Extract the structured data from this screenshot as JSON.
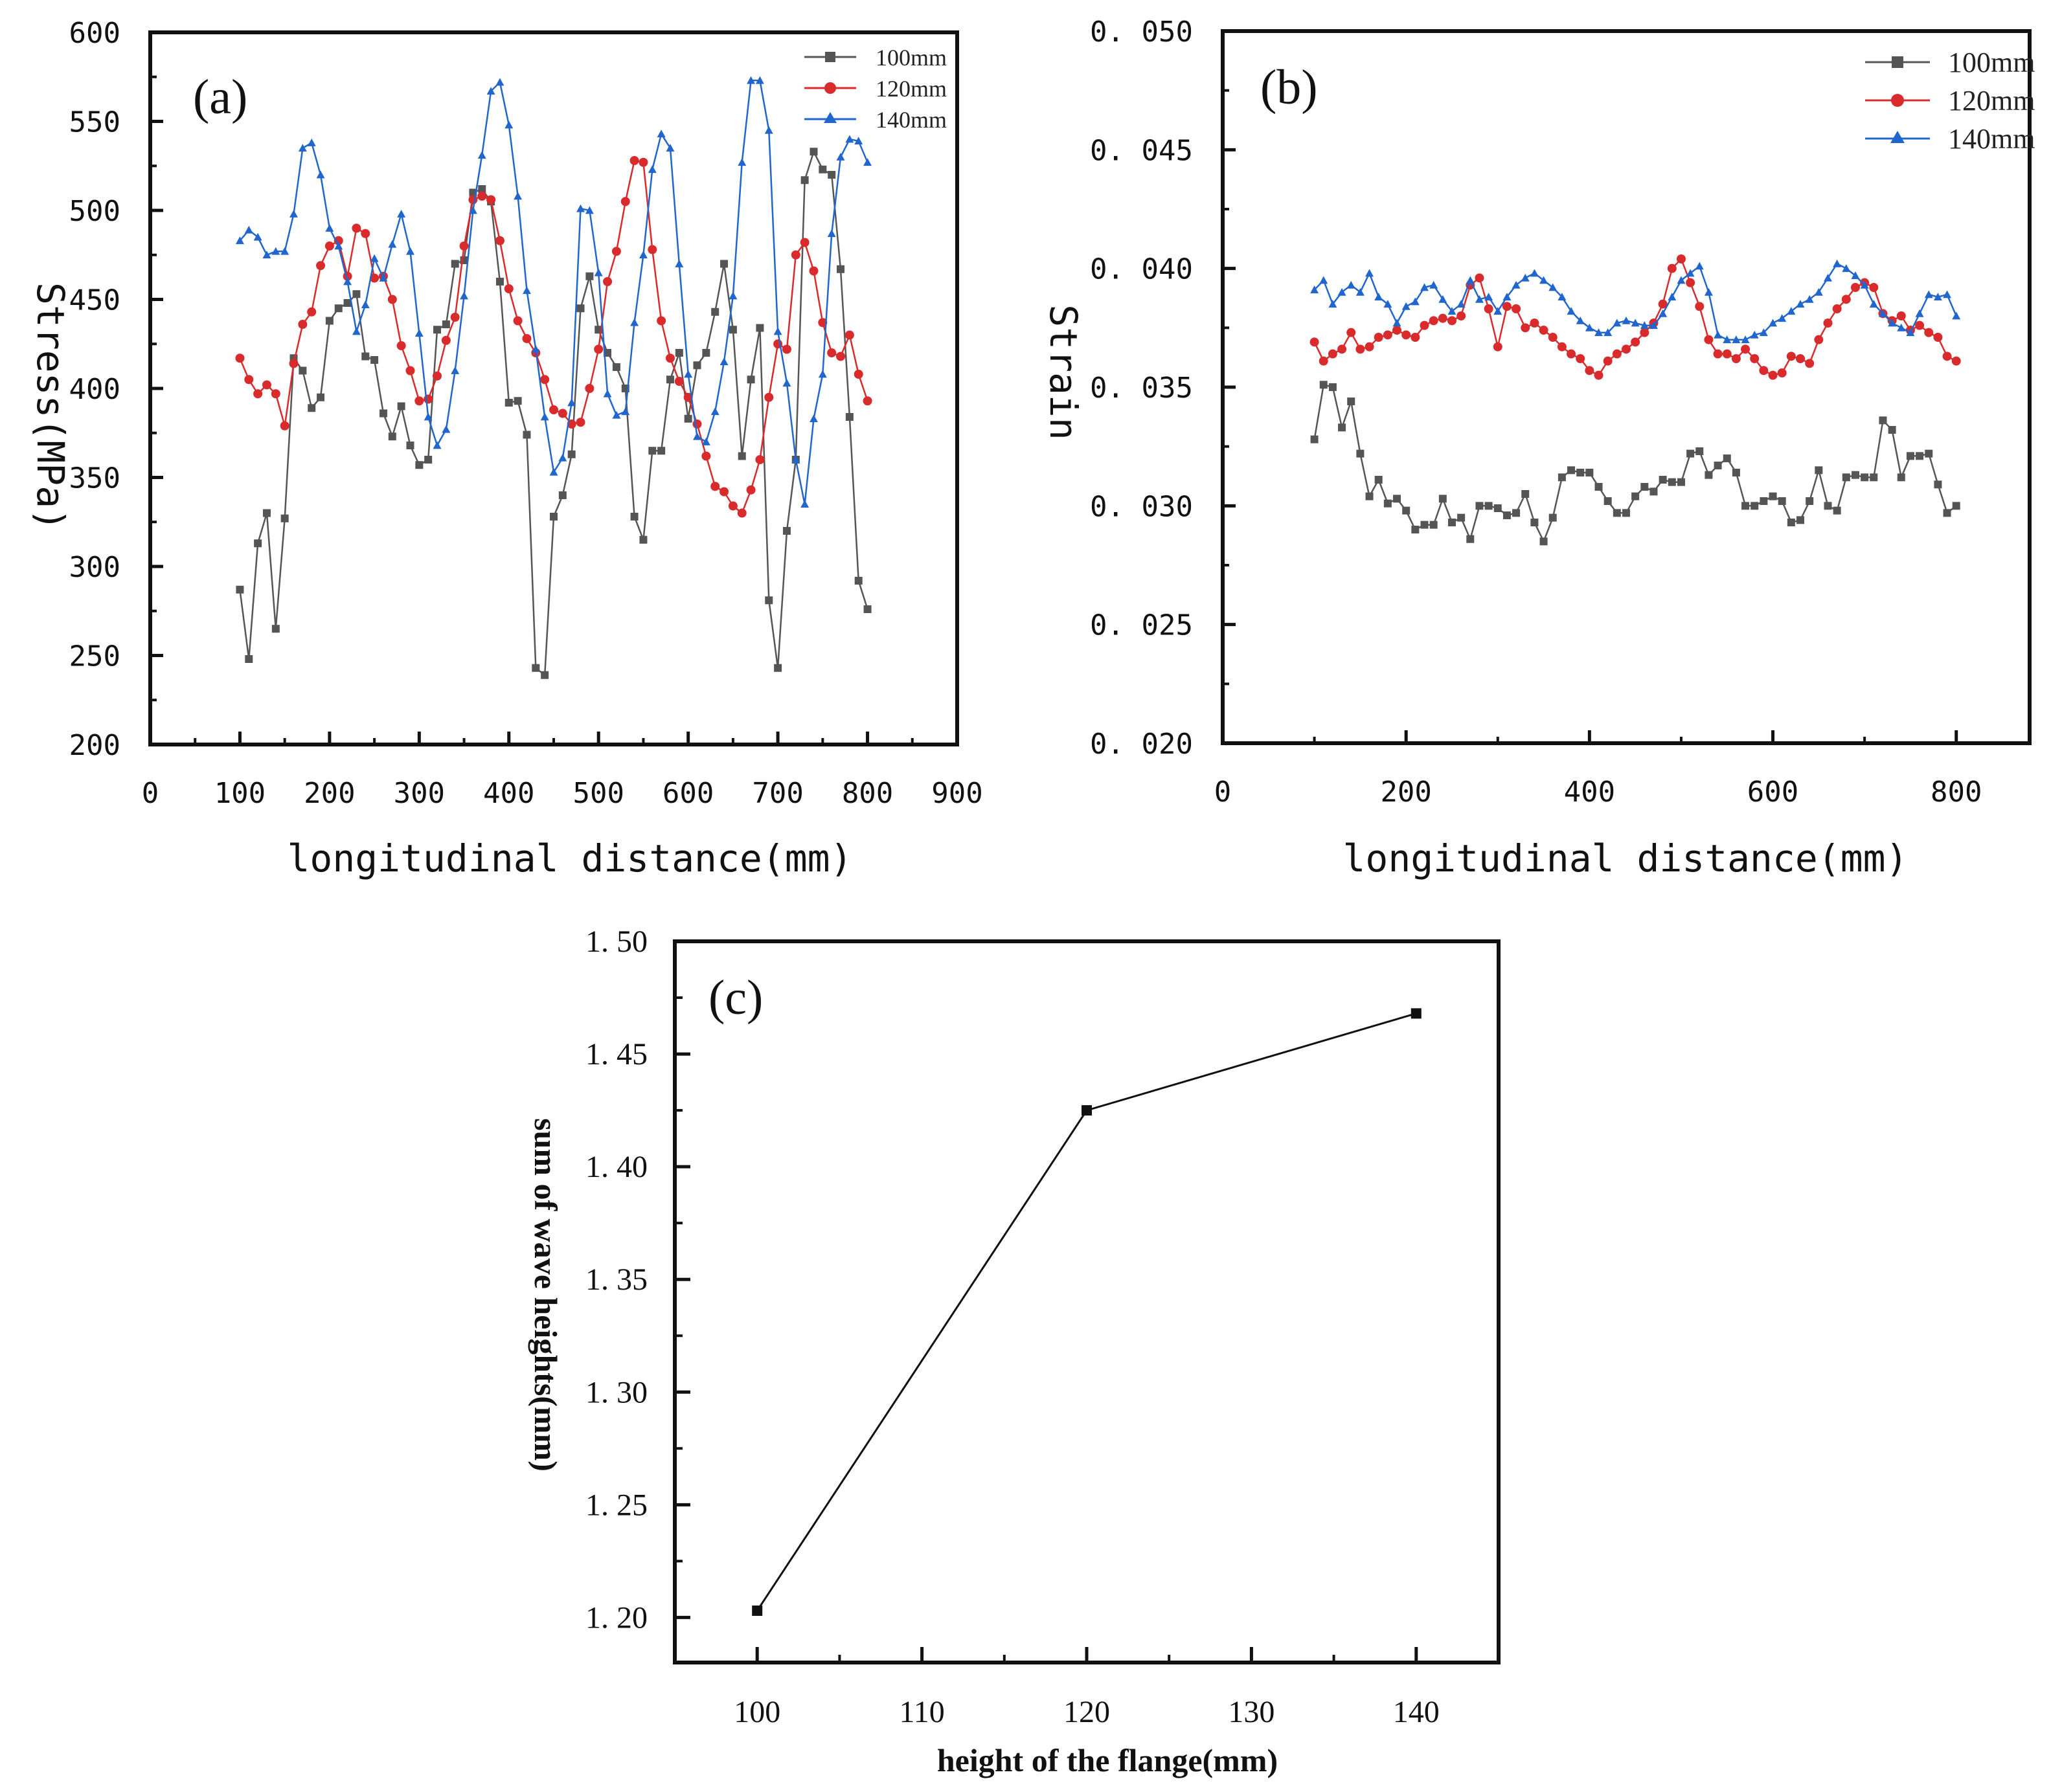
{
  "chart_data": [
    {
      "type": "line",
      "panel": "(a)",
      "xlabel": "longitudinal distance(mm)",
      "ylabel": "Stress(MPa)",
      "xlim": [
        0,
        900
      ],
      "ylim": [
        200,
        600
      ],
      "xticks": [
        0,
        100,
        200,
        300,
        400,
        500,
        600,
        700,
        800,
        900
      ],
      "yticks": [
        200,
        250,
        300,
        350,
        400,
        450,
        500,
        550,
        600
      ],
      "legend": "top-right",
      "series": [
        {
          "name": "100mm",
          "color": "#555555",
          "marker": "square",
          "x": [
            100,
            110,
            120,
            130,
            140,
            150,
            160,
            170,
            180,
            190,
            200,
            210,
            220,
            230,
            240,
            250,
            260,
            270,
            280,
            290,
            300,
            310,
            320,
            330,
            340,
            350,
            360,
            370,
            380,
            390,
            400,
            410,
            420,
            430,
            440,
            450,
            460,
            470,
            480,
            490,
            500,
            510,
            520,
            530,
            540,
            550,
            560,
            570,
            580,
            590,
            600,
            610,
            620,
            630,
            640,
            650,
            660,
            670,
            680,
            690,
            700,
            710,
            720,
            730,
            740,
            750,
            760,
            770,
            780,
            790,
            800
          ],
          "values": [
            287,
            248,
            313,
            330,
            265,
            327,
            417,
            410,
            389,
            395,
            438,
            445,
            448,
            453,
            418,
            416,
            386,
            373,
            390,
            368,
            357,
            360,
            433,
            436,
            470,
            472,
            510,
            512,
            505,
            460,
            392,
            393,
            374,
            243,
            239,
            328,
            340,
            363,
            445,
            463,
            433,
            420,
            412,
            400,
            328,
            315,
            365,
            365,
            405,
            420,
            383,
            413,
            420,
            443,
            470,
            433,
            362,
            405,
            434,
            281,
            243,
            320,
            360,
            517,
            533,
            523,
            520,
            467,
            384,
            292,
            276
          ]
        },
        {
          "name": "120mm",
          "color": "#d92b2b",
          "marker": "circle",
          "x": [
            100,
            110,
            120,
            130,
            140,
            150,
            160,
            170,
            180,
            190,
            200,
            210,
            220,
            230,
            240,
            250,
            260,
            270,
            280,
            290,
            300,
            310,
            320,
            330,
            340,
            350,
            360,
            370,
            380,
            390,
            400,
            410,
            420,
            430,
            440,
            450,
            460,
            470,
            480,
            490,
            500,
            510,
            520,
            530,
            540,
            550,
            560,
            570,
            580,
            590,
            600,
            610,
            620,
            630,
            640,
            650,
            660,
            670,
            680,
            690,
            700,
            710,
            720,
            730,
            740,
            750,
            760,
            770,
            780,
            790,
            800
          ],
          "values": [
            417,
            405,
            397,
            402,
            397,
            379,
            414,
            436,
            443,
            469,
            480,
            483,
            463,
            490,
            487,
            462,
            463,
            450,
            424,
            410,
            393,
            394,
            407,
            427,
            440,
            480,
            506,
            508,
            506,
            483,
            456,
            438,
            428,
            420,
            405,
            388,
            386,
            380,
            381,
            400,
            422,
            460,
            477,
            505,
            528,
            527,
            478,
            438,
            417,
            404,
            395,
            380,
            362,
            345,
            342,
            334,
            330,
            343,
            360,
            395,
            425,
            422,
            475,
            482,
            466,
            437,
            420,
            418,
            430,
            408,
            393
          ]
        },
        {
          "name": "140mm",
          "color": "#2166cc",
          "marker": "triangle",
          "x": [
            100,
            110,
            120,
            130,
            140,
            150,
            160,
            170,
            180,
            190,
            200,
            210,
            220,
            230,
            240,
            250,
            260,
            270,
            280,
            290,
            300,
            310,
            320,
            330,
            340,
            350,
            360,
            370,
            380,
            390,
            400,
            410,
            420,
            430,
            440,
            450,
            460,
            470,
            480,
            490,
            500,
            510,
            520,
            530,
            540,
            550,
            560,
            570,
            580,
            590,
            600,
            610,
            620,
            630,
            640,
            650,
            660,
            670,
            680,
            690,
            700,
            710,
            720,
            730,
            740,
            750,
            760,
            770,
            780,
            790,
            800
          ],
          "values": [
            483,
            489,
            485,
            475,
            477,
            477,
            498,
            535,
            538,
            520,
            490,
            480,
            460,
            432,
            447,
            473,
            462,
            481,
            498,
            477,
            431,
            384,
            368,
            377,
            410,
            452,
            500,
            531,
            567,
            572,
            548,
            508,
            455,
            422,
            384,
            353,
            361,
            392,
            501,
            500,
            465,
            397,
            385,
            387,
            437,
            475,
            523,
            543,
            535,
            470,
            408,
            373,
            370,
            387,
            415,
            452,
            527,
            573,
            573,
            545,
            432,
            403,
            360,
            335,
            383,
            408,
            487,
            530,
            540,
            539,
            527
          ]
        }
      ]
    },
    {
      "type": "line",
      "panel": "(b)",
      "xlabel": "longitudinal distance(mm)",
      "ylabel": "Strain",
      "xlim": [
        0,
        880
      ],
      "ylim": [
        0.02,
        0.05
      ],
      "xticks": [
        0,
        200,
        400,
        600,
        800
      ],
      "xticklabels": [
        "0",
        "200",
        "400",
        "600",
        "800"
      ],
      "yticks": [
        0.02,
        0.025,
        0.03,
        0.035,
        0.04,
        0.045,
        0.05
      ],
      "yticklabels": [
        "0. 020",
        "0. 025",
        "0. 030",
        "0. 035",
        "0. 040",
        "0. 045",
        "0. 050"
      ],
      "legend": "top-right",
      "series": [
        {
          "name": "100mm",
          "color": "#555555",
          "marker": "square",
          "x": [
            100,
            110,
            120,
            130,
            140,
            150,
            160,
            170,
            180,
            190,
            200,
            210,
            220,
            230,
            240,
            250,
            260,
            270,
            280,
            290,
            300,
            310,
            320,
            330,
            340,
            350,
            360,
            370,
            380,
            390,
            400,
            410,
            420,
            430,
            440,
            450,
            460,
            470,
            480,
            490,
            500,
            510,
            520,
            530,
            540,
            550,
            560,
            570,
            580,
            590,
            600,
            610,
            620,
            630,
            640,
            650,
            660,
            670,
            680,
            690,
            700,
            710,
            720,
            730,
            740,
            750,
            760,
            770,
            780,
            790,
            800
          ],
          "values": [
            0.0328,
            0.0351,
            0.035,
            0.0333,
            0.0344,
            0.0322,
            0.0304,
            0.0311,
            0.0301,
            0.0303,
            0.0298,
            0.029,
            0.0292,
            0.0292,
            0.0303,
            0.0293,
            0.0295,
            0.0286,
            0.03,
            0.03,
            0.0299,
            0.0296,
            0.0297,
            0.0305,
            0.0293,
            0.0285,
            0.0295,
            0.0312,
            0.0315,
            0.0314,
            0.0314,
            0.0308,
            0.0302,
            0.0297,
            0.0297,
            0.0304,
            0.0308,
            0.0306,
            0.0311,
            0.031,
            0.031,
            0.0322,
            0.0323,
            0.0313,
            0.0317,
            0.032,
            0.0314,
            0.03,
            0.03,
            0.0302,
            0.0304,
            0.0302,
            0.0293,
            0.0294,
            0.0302,
            0.0315,
            0.03,
            0.0298,
            0.0312,
            0.0313,
            0.0312,
            0.0312,
            0.0336,
            0.0332,
            0.0312,
            0.0321,
            0.0321,
            0.0322,
            0.0309,
            0.0297,
            0.03
          ]
        },
        {
          "name": "120mm",
          "color": "#d92b2b",
          "marker": "circle",
          "x": [
            100,
            110,
            120,
            130,
            140,
            150,
            160,
            170,
            180,
            190,
            200,
            210,
            220,
            230,
            240,
            250,
            260,
            270,
            280,
            290,
            300,
            310,
            320,
            330,
            340,
            350,
            360,
            370,
            380,
            390,
            400,
            410,
            420,
            430,
            440,
            450,
            460,
            470,
            480,
            490,
            500,
            510,
            520,
            530,
            540,
            550,
            560,
            570,
            580,
            590,
            600,
            610,
            620,
            630,
            640,
            650,
            660,
            670,
            680,
            690,
            700,
            710,
            720,
            730,
            740,
            750,
            760,
            770,
            780,
            790,
            800
          ],
          "values": [
            0.0369,
            0.0361,
            0.0364,
            0.0366,
            0.0373,
            0.0366,
            0.0367,
            0.0371,
            0.0372,
            0.0374,
            0.0372,
            0.0371,
            0.0376,
            0.0378,
            0.0379,
            0.0378,
            0.038,
            0.0393,
            0.0396,
            0.0383,
            0.0367,
            0.0384,
            0.0383,
            0.0375,
            0.0377,
            0.0374,
            0.0371,
            0.0367,
            0.0364,
            0.0362,
            0.0357,
            0.0355,
            0.0361,
            0.0364,
            0.0366,
            0.0369,
            0.0373,
            0.0377,
            0.0385,
            0.04,
            0.0404,
            0.0394,
            0.0384,
            0.037,
            0.0364,
            0.0364,
            0.0362,
            0.0366,
            0.0362,
            0.0357,
            0.0355,
            0.0356,
            0.0363,
            0.0362,
            0.036,
            0.037,
            0.0377,
            0.0383,
            0.0387,
            0.0392,
            0.0394,
            0.0392,
            0.0381,
            0.0378,
            0.038,
            0.0374,
            0.0376,
            0.0373,
            0.0371,
            0.0363,
            0.0361
          ]
        },
        {
          "name": "140mm",
          "color": "#2166cc",
          "marker": "triangle",
          "x": [
            100,
            110,
            120,
            130,
            140,
            150,
            160,
            170,
            180,
            190,
            200,
            210,
            220,
            230,
            240,
            250,
            260,
            270,
            280,
            290,
            300,
            310,
            320,
            330,
            340,
            350,
            360,
            370,
            380,
            390,
            400,
            410,
            420,
            430,
            440,
            450,
            460,
            470,
            480,
            490,
            500,
            510,
            520,
            530,
            540,
            550,
            560,
            570,
            580,
            590,
            600,
            610,
            620,
            630,
            640,
            650,
            660,
            670,
            680,
            690,
            700,
            710,
            720,
            730,
            740,
            750,
            760,
            770,
            780,
            790,
            800
          ],
          "values": [
            0.0391,
            0.0395,
            0.0385,
            0.039,
            0.0393,
            0.039,
            0.0398,
            0.0388,
            0.0385,
            0.0377,
            0.0384,
            0.0386,
            0.0392,
            0.0393,
            0.0387,
            0.0382,
            0.0385,
            0.0395,
            0.0387,
            0.0388,
            0.0382,
            0.0388,
            0.0393,
            0.0396,
            0.0398,
            0.0395,
            0.0392,
            0.0388,
            0.0382,
            0.0378,
            0.0375,
            0.0373,
            0.0373,
            0.0377,
            0.0378,
            0.0377,
            0.0376,
            0.0376,
            0.0381,
            0.0388,
            0.0395,
            0.0398,
            0.0401,
            0.039,
            0.0372,
            0.037,
            0.037,
            0.037,
            0.0372,
            0.0373,
            0.0377,
            0.0379,
            0.0382,
            0.0385,
            0.0387,
            0.039,
            0.0396,
            0.0402,
            0.04,
            0.0397,
            0.0393,
            0.0385,
            0.0381,
            0.0377,
            0.0375,
            0.0373,
            0.0381,
            0.0389,
            0.0388,
            0.0389,
            0.038
          ]
        }
      ]
    },
    {
      "type": "line",
      "panel": "(c)",
      "xlabel": "height of the flange(mm)",
      "ylabel": "sum of wave heights(mm)",
      "xlim": [
        95,
        145
      ],
      "ylim": [
        1.18,
        1.5
      ],
      "xticks": [
        100,
        110,
        120,
        130,
        140
      ],
      "xticklabels": [
        "100",
        "110",
        "120",
        "130",
        "140"
      ],
      "yticks": [
        1.2,
        1.25,
        1.3,
        1.35,
        1.4,
        1.45,
        1.5
      ],
      "yticklabels": [
        "1. 20",
        "1. 25",
        "1. 30",
        "1. 35",
        "1. 40",
        "1. 45",
        "1. 50"
      ],
      "legend": "none",
      "series": [
        {
          "name": "sum of wave heights",
          "color": "#111111",
          "marker": "square",
          "x": [
            100,
            120,
            140
          ],
          "values": [
            1.203,
            1.425,
            1.468
          ]
        }
      ]
    }
  ]
}
